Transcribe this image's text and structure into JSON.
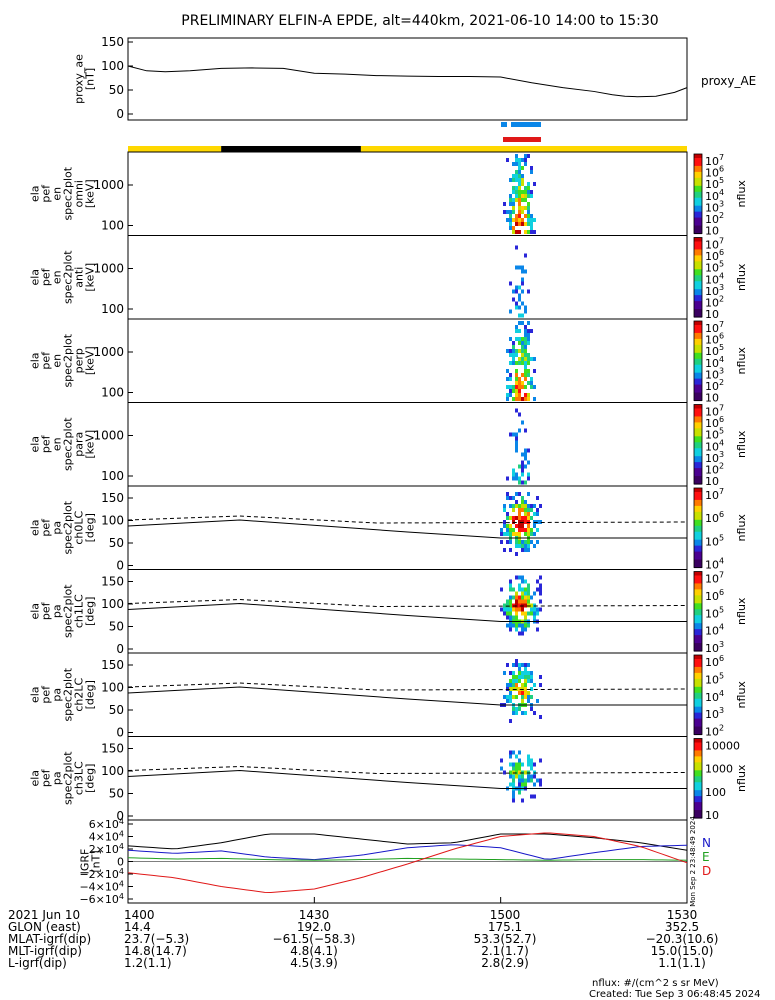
{
  "title": "PRELIMINARY ELFIN-A EPDE, alt=440km, 2021-06-10 14:00 to 15:30",
  "time_axis": {
    "start": "14:00",
    "end": "15:30",
    "ticks": [
      "1400",
      "1430",
      "1500",
      "1530"
    ]
  },
  "proxy_ae": {
    "ylabel": [
      "proxy_ae",
      "[nT]"
    ],
    "yticks": [
      "150",
      "100",
      "50",
      "0"
    ],
    "ylim": [
      0,
      150
    ],
    "legend": "proxy_AE",
    "chart_data": {
      "type": "line",
      "x_minutes": [
        0,
        3,
        6,
        10,
        15,
        20,
        25,
        30,
        35,
        40,
        45,
        50,
        55,
        60,
        65,
        70,
        75,
        78,
        80,
        82,
        85,
        88,
        90
      ],
      "values": [
        100,
        90,
        88,
        90,
        95,
        96,
        95,
        85,
        83,
        80,
        79,
        78,
        78,
        77,
        65,
        55,
        47,
        40,
        37,
        36,
        37,
        45,
        55
      ]
    }
  },
  "ephemeris_bars": {
    "colors": {
      "sunlit": "#ffd800",
      "eclipse": "#000000",
      "blue": "#0a86e8",
      "red": "#e01818"
    }
  },
  "spectrogram_panels": [
    {
      "ylabel": [
        "ela",
        "pef",
        "en",
        "spec2plot",
        "omni",
        "[keV]"
      ],
      "yticks": [
        "1000",
        "100"
      ],
      "cbar_labels": [
        "10^7",
        "10^6",
        "10^5",
        "10^4",
        "10^3",
        "10^2",
        "10"
      ],
      "cbar_unit": "nflux",
      "kind": "energy",
      "intensity": 1.0
    },
    {
      "ylabel": [
        "ela",
        "pef",
        "en",
        "spec2plot",
        "anti",
        "[keV]"
      ],
      "yticks": [
        "1000",
        "100"
      ],
      "cbar_labels": [
        "10^7",
        "10^6",
        "10^5",
        "10^4",
        "10^3",
        "10^2",
        "10"
      ],
      "cbar_unit": "nflux",
      "kind": "energy",
      "intensity": 0.35
    },
    {
      "ylabel": [
        "ela",
        "pef",
        "en",
        "spec2plot",
        "perp",
        "[keV]"
      ],
      "yticks": [
        "1000",
        "100"
      ],
      "cbar_labels": [
        "10^7",
        "10^6",
        "10^5",
        "10^4",
        "10^3",
        "10^2",
        "10"
      ],
      "cbar_unit": "nflux",
      "kind": "energy",
      "intensity": 0.95
    },
    {
      "ylabel": [
        "ela",
        "pef",
        "en",
        "spec2plot",
        "para",
        "[keV]"
      ],
      "yticks": [
        "1000",
        "100"
      ],
      "cbar_labels": [
        "10^7",
        "10^6",
        "10^5",
        "10^4",
        "10^3",
        "10^2",
        "10"
      ],
      "cbar_unit": "nflux",
      "kind": "energy",
      "intensity": 0.4
    },
    {
      "ylabel": [
        "ela",
        "pef",
        "pa",
        "spec2plot",
        "ch0LC",
        "[deg]"
      ],
      "yticks": [
        "150",
        "100",
        "50",
        "0"
      ],
      "cbar_labels": [
        "10^7",
        "10^6",
        "10^5",
        "10^4"
      ],
      "cbar_unit": "nflux",
      "kind": "pitch",
      "intensity": 1.0
    },
    {
      "ylabel": [
        "ela",
        "pef",
        "pa",
        "spec2plot",
        "ch1LC",
        "[deg]"
      ],
      "yticks": [
        "150",
        "100",
        "50",
        "0"
      ],
      "cbar_labels": [
        "10^7",
        "10^6",
        "10^5",
        "10^4",
        "10^3"
      ],
      "cbar_unit": "nflux",
      "kind": "pitch",
      "intensity": 0.9
    },
    {
      "ylabel": [
        "ela",
        "pef",
        "pa",
        "spec2plot",
        "ch2LC",
        "[deg]"
      ],
      "yticks": [
        "150",
        "100",
        "50",
        "0"
      ],
      "cbar_labels": [
        "10^6",
        "10^5",
        "10^4",
        "10^3",
        "10^2"
      ],
      "cbar_unit": "nflux",
      "kind": "pitch",
      "intensity": 0.7
    },
    {
      "ylabel": [
        "ela",
        "pef",
        "pa",
        "spec2plot",
        "ch3LC",
        "[deg]"
      ],
      "yticks": [
        "150",
        "100",
        "50",
        "0"
      ],
      "cbar_labels": [
        "10000",
        "1000",
        "100",
        "10"
      ],
      "cbar_unit": "nflux",
      "kind": "pitch",
      "intensity": 0.5
    }
  ],
  "igrf": {
    "ylabel": [
      "IGRF",
      "[nT]"
    ],
    "yticks": [
      "6×10^4",
      "4×10^4",
      "2×10^4",
      "0",
      "−2×10^4",
      "−4×10^4",
      "−6×10^4"
    ],
    "legend": [
      {
        "label": "N",
        "color": "#1818c8"
      },
      {
        "label": "E",
        "color": "#20a020"
      },
      {
        "label": "D",
        "color": "#e01818"
      }
    ],
    "side_note": "Mon Sep  2 23:48:49 2024",
    "chart_data": {
      "type": "line",
      "x_minutes": [
        0,
        7.5,
        15,
        22.5,
        30,
        37.5,
        45,
        52.5,
        60,
        67.5,
        75,
        82.5,
        90
      ],
      "series": [
        {
          "name": "black",
          "color": "#000000",
          "values": [
            25000,
            20000,
            30000,
            44000,
            44000,
            36000,
            28000,
            30000,
            44000,
            44000,
            38000,
            30000,
            18000
          ]
        },
        {
          "name": "N",
          "color": "#1818c8",
          "values": [
            18000,
            13000,
            17000,
            7000,
            3000,
            10000,
            22000,
            27000,
            22000,
            3000,
            14000,
            24000,
            26000
          ]
        },
        {
          "name": "E",
          "color": "#20a020",
          "values": [
            6000,
            4000,
            5000,
            3000,
            2000,
            3000,
            5000,
            4000,
            3000,
            2000,
            3000,
            3000,
            2000
          ]
        },
        {
          "name": "D",
          "color": "#e01818",
          "values": [
            -18000,
            -26000,
            -40000,
            -50000,
            -44000,
            -26000,
            -4000,
            20000,
            40000,
            46000,
            40000,
            24000,
            -2000
          ]
        }
      ]
    }
  },
  "ephemeris_table": {
    "rows": [
      {
        "label": "2021 Jun 10",
        "values": [
          "1400",
          "1430",
          "1500",
          "1530"
        ]
      },
      {
        "label": "GLON (east)",
        "values": [
          "14.4",
          "192.0",
          "175.1",
          "352.5"
        ]
      },
      {
        "label": "MLAT-igrf(dip)",
        "values": [
          "23.7(−5.3)",
          "−61.5(−58.3)",
          "53.3(52.7)",
          "−20.3(10.6)"
        ]
      },
      {
        "label": "MLT-igrf(dip)",
        "values": [
          "14.8(14.7)",
          "4.8(4.1)",
          "2.1(1.7)",
          "15.0(15.0)"
        ]
      },
      {
        "label": "L-igrf(dip)",
        "values": [
          "1.2(1.1)",
          "4.5(3.9)",
          "2.8(2.9)",
          "1.1(1.1)"
        ]
      }
    ]
  },
  "footer": {
    "units": "nflux: #/(cm^2 s sr MeV)",
    "created": "Created: Tue Sep  3 06:48:45 2024"
  }
}
